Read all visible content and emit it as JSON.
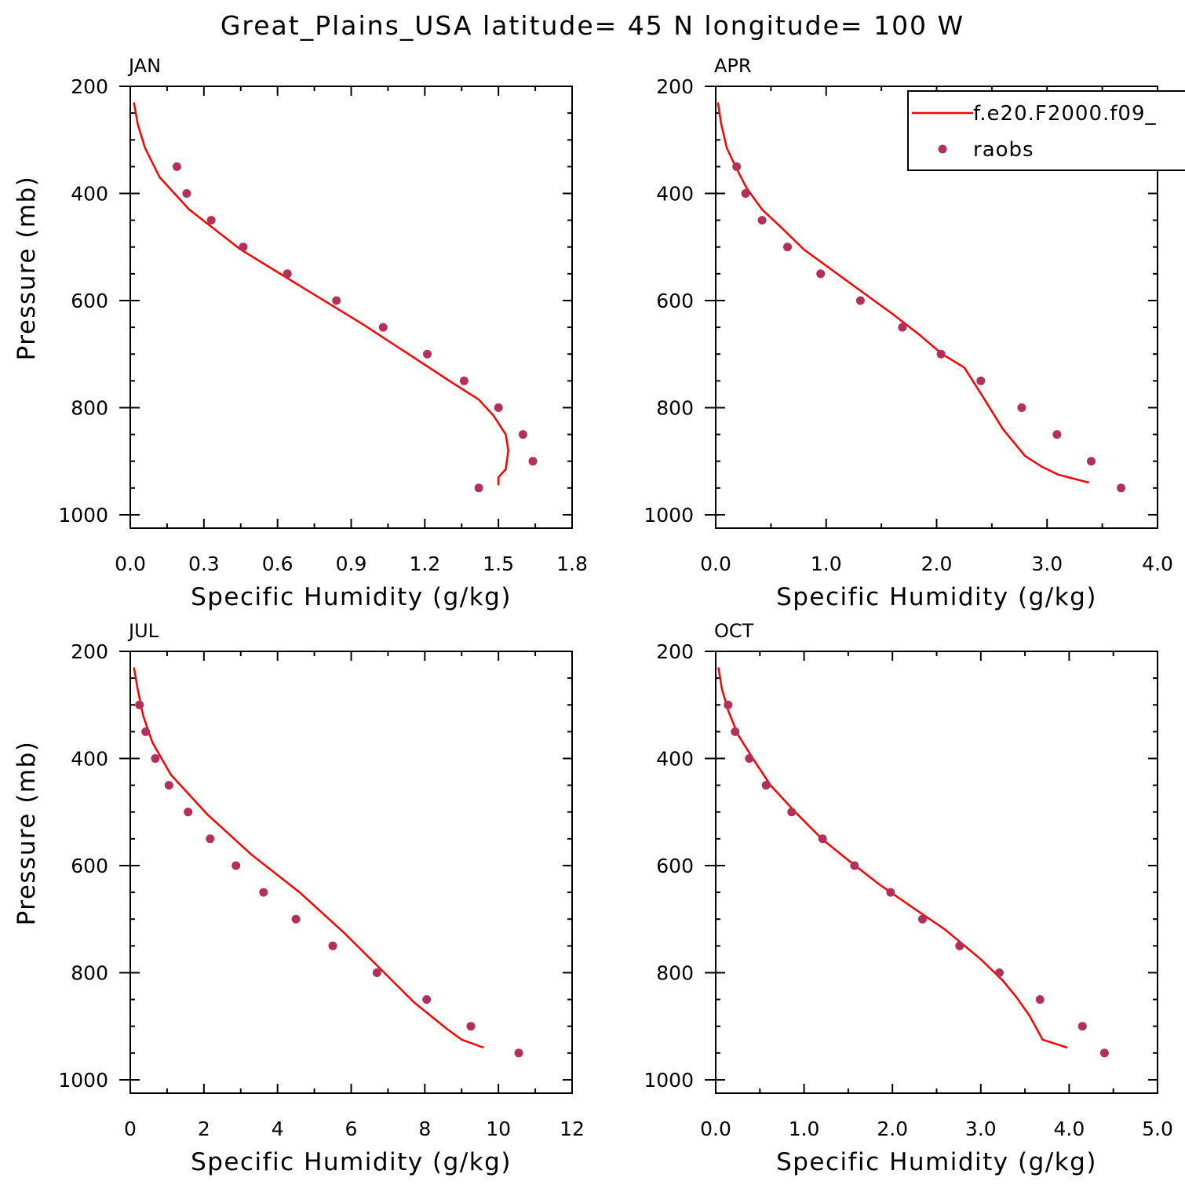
{
  "title": "Great_Plains_USA  latitude= 45 N longitude= 100 W",
  "colors": {
    "model": "#ff0000",
    "obs": "#b3305a",
    "axis": "#000000"
  },
  "legend": {
    "model_label": "f.e20.F2000.f09_",
    "obs_label": "raobs",
    "placement": "top-right of APR panel"
  },
  "chart_data": [
    {
      "type": "line",
      "panel": "JAN",
      "xlabel": "Specific Humidity (g/kg)",
      "ylabel": "Pressure (mb)",
      "xlim": [
        0,
        1.8
      ],
      "ylim": [
        200,
        1025
      ],
      "y_inverted": true,
      "xticks": [
        0.0,
        0.3,
        0.6,
        0.9,
        1.2,
        1.5,
        1.8
      ],
      "xtick_labels": [
        "0.0",
        "0.3",
        "0.6",
        "0.9",
        "1.2",
        "1.5",
        "1.8"
      ],
      "yticks": [
        200,
        400,
        600,
        800,
        1000
      ],
      "ytick_labels": [
        "200",
        "400",
        "600",
        "800",
        "1000"
      ],
      "series": [
        {
          "name": "f.e20.F2000.f09_",
          "kind": "line",
          "x": [
            0.015,
            0.03,
            0.06,
            0.12,
            0.24,
            0.45,
            0.7,
            0.95,
            1.15,
            1.3,
            1.42,
            1.48,
            1.53,
            1.54,
            1.53,
            1.5,
            1.5
          ],
          "y": [
            230,
            270,
            315,
            370,
            430,
            505,
            575,
            645,
            705,
            750,
            785,
            815,
            850,
            880,
            915,
            930,
            945
          ]
        },
        {
          "name": "raobs",
          "kind": "scatter",
          "x": [
            0.19,
            0.23,
            0.33,
            0.46,
            0.64,
            0.84,
            1.03,
            1.21,
            1.36,
            1.5,
            1.6,
            1.64,
            1.42
          ],
          "y": [
            350,
            400,
            450,
            500,
            550,
            600,
            650,
            700,
            750,
            800,
            850,
            900,
            950
          ]
        }
      ]
    },
    {
      "type": "line",
      "panel": "APR",
      "xlabel": "Specific Humidity (g/kg)",
      "ylabel": "",
      "xlim": [
        0,
        4.0
      ],
      "ylim": [
        200,
        1025
      ],
      "y_inverted": true,
      "xticks": [
        0.0,
        1.0,
        2.0,
        3.0,
        4.0
      ],
      "xtick_labels": [
        "0.0",
        "1.0",
        "2.0",
        "3.0",
        "4.0"
      ],
      "yticks": [
        200,
        400,
        600,
        800,
        1000
      ],
      "ytick_labels": [
        "200",
        "400",
        "600",
        "800",
        "1000"
      ],
      "series": [
        {
          "name": "f.e20.F2000.f09_",
          "kind": "line",
          "x": [
            0.02,
            0.05,
            0.1,
            0.18,
            0.28,
            0.42,
            0.6,
            0.8,
            1.2,
            1.6,
            1.85,
            2.05,
            2.25,
            2.42,
            2.6,
            2.8,
            2.95,
            3.1,
            3.38
          ],
          "y": [
            230,
            270,
            315,
            350,
            390,
            430,
            465,
            505,
            565,
            625,
            665,
            700,
            725,
            780,
            840,
            890,
            910,
            925,
            940
          ]
        },
        {
          "name": "raobs",
          "kind": "scatter",
          "x": [
            0.19,
            0.27,
            0.42,
            0.65,
            0.95,
            1.31,
            1.69,
            2.04,
            2.4,
            2.77,
            3.09,
            3.4,
            3.67
          ],
          "y": [
            350,
            400,
            450,
            500,
            550,
            600,
            650,
            700,
            750,
            800,
            850,
            900,
            950
          ]
        }
      ]
    },
    {
      "type": "line",
      "panel": "JUL",
      "xlabel": "Specific Humidity (g/kg)",
      "ylabel": "Pressure (mb)",
      "xlim": [
        0,
        12
      ],
      "ylim": [
        200,
        1025
      ],
      "y_inverted": true,
      "xticks": [
        0,
        2,
        4,
        6,
        8,
        10,
        12
      ],
      "xtick_labels": [
        "0",
        "2",
        "4",
        "6",
        "8",
        "10",
        "12"
      ],
      "yticks": [
        200,
        400,
        600,
        800,
        1000
      ],
      "ytick_labels": [
        "200",
        "400",
        "600",
        "800",
        "1000"
      ],
      "series": [
        {
          "name": "f.e20.F2000.f09_",
          "kind": "line",
          "x": [
            0.1,
            0.2,
            0.35,
            0.6,
            1.1,
            2.1,
            3.3,
            4.6,
            5.8,
            6.9,
            7.7,
            8.6,
            9.0,
            9.6
          ],
          "y": [
            230,
            270,
            320,
            370,
            430,
            505,
            580,
            650,
            725,
            800,
            855,
            905,
            925,
            940
          ]
        },
        {
          "name": "raobs",
          "kind": "scatter",
          "x": [
            0.25,
            0.42,
            0.68,
            1.05,
            1.57,
            2.17,
            2.87,
            3.62,
            4.5,
            5.5,
            6.7,
            8.05,
            9.25,
            10.55
          ],
          "y": [
            300,
            350,
            400,
            450,
            500,
            550,
            600,
            650,
            700,
            750,
            800,
            850,
            900,
            950
          ]
        }
      ]
    },
    {
      "type": "line",
      "panel": "OCT",
      "xlabel": "Specific Humidity (g/kg)",
      "ylabel": "",
      "xlim": [
        0,
        5.0
      ],
      "ylim": [
        200,
        1025
      ],
      "y_inverted": true,
      "xticks": [
        0.0,
        1.0,
        2.0,
        3.0,
        4.0,
        5.0
      ],
      "xtick_labels": [
        "0.0",
        "1.0",
        "2.0",
        "3.0",
        "4.0",
        "5.0"
      ],
      "yticks": [
        200,
        400,
        600,
        800,
        1000
      ],
      "ytick_labels": [
        "200",
        "400",
        "600",
        "800",
        "1000"
      ],
      "series": [
        {
          "name": "f.e20.F2000.f09_",
          "kind": "line",
          "x": [
            0.03,
            0.07,
            0.14,
            0.25,
            0.42,
            0.62,
            0.9,
            1.2,
            1.5,
            1.85,
            2.2,
            2.6,
            3.0,
            3.25,
            3.4,
            3.55,
            3.7,
            3.98
          ],
          "y": [
            230,
            270,
            310,
            355,
            400,
            450,
            500,
            550,
            590,
            635,
            675,
            720,
            775,
            815,
            845,
            880,
            925,
            940
          ]
        },
        {
          "name": "raobs",
          "kind": "scatter",
          "x": [
            0.14,
            0.22,
            0.38,
            0.57,
            0.86,
            1.21,
            1.57,
            1.98,
            2.34,
            2.76,
            3.21,
            3.67,
            4.15,
            4.4
          ],
          "y": [
            300,
            350,
            400,
            450,
            500,
            550,
            600,
            650,
            700,
            750,
            800,
            850,
            900,
            950
          ]
        }
      ]
    }
  ]
}
